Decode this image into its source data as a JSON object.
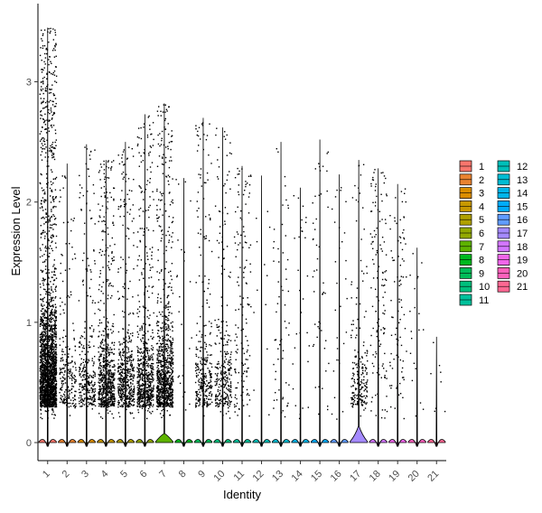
{
  "chart_data": {
    "type": "violin",
    "xlabel": "Identity",
    "ylabel": "Expression Level",
    "ylim": [
      -0.15,
      3.65
    ],
    "yticks": [
      "0",
      "1",
      "2",
      "3"
    ],
    "legend_position": "right",
    "categories": [
      "1",
      "2",
      "3",
      "4",
      "5",
      "6",
      "7",
      "8",
      "9",
      "10",
      "11",
      "12",
      "13",
      "14",
      "15",
      "16",
      "17",
      "18",
      "19",
      "20",
      "21"
    ],
    "colors": [
      "#F8766D",
      "#EA8331",
      "#DB8E00",
      "#C79800",
      "#B0A100",
      "#93AA00",
      "#5EB300",
      "#00B81F",
      "#00BC59",
      "#00BF7D",
      "#00C19C",
      "#00BFB9",
      "#00BCD4",
      "#00B5EA",
      "#00ABFD",
      "#619CFF",
      "#A58AFF",
      "#D376FF",
      "#F066EA",
      "#FF62BC",
      "#FF6893"
    ],
    "series": [
      {
        "name": "1",
        "max": 3.45,
        "dots": 2200,
        "violin_peak": 0.0
      },
      {
        "name": "2",
        "max": 2.32,
        "dots": 220,
        "violin_peak": 0.0
      },
      {
        "name": "3",
        "max": 2.48,
        "dots": 300,
        "violin_peak": 0.0
      },
      {
        "name": "4",
        "max": 2.35,
        "dots": 700,
        "violin_peak": 0.0
      },
      {
        "name": "5",
        "max": 2.5,
        "dots": 500,
        "violin_peak": 0.0
      },
      {
        "name": "6",
        "max": 2.73,
        "dots": 650,
        "violin_peak": 0.0
      },
      {
        "name": "7",
        "max": 2.82,
        "dots": 900,
        "violin_peak": 0.12
      },
      {
        "name": "8",
        "max": 2.2,
        "dots": 25,
        "violin_peak": 0.0
      },
      {
        "name": "9",
        "max": 2.7,
        "dots": 300,
        "violin_peak": 0.0
      },
      {
        "name": "10",
        "max": 2.62,
        "dots": 280,
        "violin_peak": 0.0
      },
      {
        "name": "11",
        "max": 2.3,
        "dots": 140,
        "violin_peak": 0.0
      },
      {
        "name": "12",
        "max": 2.22,
        "dots": 12,
        "violin_peak": 0.0
      },
      {
        "name": "13",
        "max": 2.5,
        "dots": 60,
        "violin_peak": 0.0
      },
      {
        "name": "14",
        "max": 2.12,
        "dots": 30,
        "violin_peak": 0.0
      },
      {
        "name": "15",
        "max": 2.52,
        "dots": 50,
        "violin_peak": 0.0
      },
      {
        "name": "16",
        "max": 2.23,
        "dots": 30,
        "violin_peak": 0.0
      },
      {
        "name": "17",
        "max": 2.35,
        "dots": 200,
        "violin_peak": 0.18
      },
      {
        "name": "18",
        "max": 2.28,
        "dots": 130,
        "violin_peak": 0.0
      },
      {
        "name": "19",
        "max": 2.15,
        "dots": 90,
        "violin_peak": 0.0
      },
      {
        "name": "20",
        "max": 1.62,
        "dots": 20,
        "violin_peak": 0.0
      },
      {
        "name": "21",
        "max": 0.88,
        "dots": 8,
        "violin_peak": 0.0
      }
    ]
  }
}
